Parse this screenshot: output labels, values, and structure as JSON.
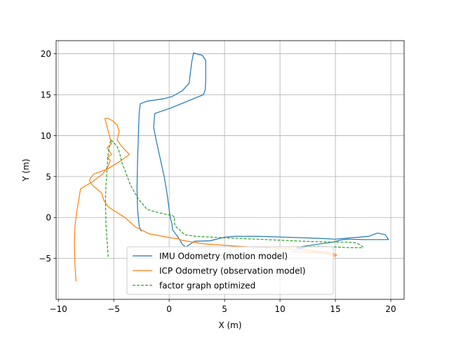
{
  "chart_data": {
    "type": "line",
    "title": "",
    "xlabel": "X (m)",
    "ylabel": "Y (m)",
    "xlim": [
      -10.2,
      21.2
    ],
    "ylim": [
      -10,
      21.6
    ],
    "xticks": [
      -10,
      -5,
      0,
      5,
      10,
      15,
      20
    ],
    "xtick_labels": [
      "−10",
      "−5",
      "0",
      "5",
      "10",
      "15",
      "20"
    ],
    "yticks": [
      -5,
      0,
      5,
      10,
      15,
      20
    ],
    "ytick_labels": [
      "−5",
      "0",
      "5",
      "10",
      "15",
      "20"
    ],
    "grid": true,
    "legend_position": "lower center",
    "series": [
      {
        "name": "IMU Odometry (motion model)",
        "color": "#1f77b4",
        "style": "solid",
        "x": [
          -2.5,
          -2.7,
          -2.85,
          -2.9,
          -2.85,
          -2.8,
          -2.75,
          -2.7,
          -2.6,
          -2.0,
          -0.5,
          0.3,
          1.2,
          1.8,
          1.85,
          1.9,
          2.05,
          2.2,
          3.0,
          3.3,
          3.3,
          3.25,
          3.1,
          2.0,
          0.2,
          -1.3,
          -1.4,
          -1.1,
          -0.45,
          -0.2,
          -0.1,
          0.0,
          0.1,
          0.25,
          0.3,
          0.8,
          1.2,
          1.5,
          2.3,
          3.7,
          5.0,
          6.0,
          8.0,
          10.5,
          13.5,
          15.0,
          18.0,
          18.8,
          19.5,
          19.8,
          19.2,
          17.5,
          16.0,
          15.5,
          14.8,
          13.5,
          12.0,
          11.5,
          12.3,
          12.1,
          11.6
        ],
        "y": [
          -1.7,
          -1.1,
          1.0,
          3.4,
          7.0,
          9.0,
          11.3,
          12.9,
          13.9,
          14.2,
          14.5,
          14.8,
          15.5,
          16.4,
          16.9,
          17.5,
          19.1,
          20.1,
          19.8,
          19.2,
          16.8,
          15.6,
          15.0,
          14.4,
          13.4,
          12.7,
          11.0,
          9.0,
          5.0,
          3.0,
          2.0,
          1.0,
          0.0,
          -0.8,
          -1.5,
          -2.4,
          -3.3,
          -3.6,
          -2.9,
          -2.85,
          -2.4,
          -2.3,
          -2.3,
          -2.4,
          -2.55,
          -2.65,
          -2.3,
          -1.9,
          -2.1,
          -2.7,
          -2.7,
          -2.7,
          -2.65,
          -2.75,
          -3.0,
          -3.25,
          -3.55,
          -3.7,
          -3.6,
          -3.75,
          -3.8
        ]
      },
      {
        "name": "ICP Odometry (observation model)",
        "color": "#ff7f0e",
        "style": "solid",
        "x": [
          -8.4,
          -8.5,
          -8.55,
          -8.5,
          -8.3,
          -8.0,
          -7.0,
          -6.0,
          -5.5,
          -5.3,
          -5.6,
          -5.2,
          -5.6,
          -5.2,
          -5.8,
          -5.5,
          -5.1,
          -4.7,
          -4.5,
          -4.7,
          -4.3,
          -3.6,
          -4.5,
          -5.6,
          -6.8,
          -7.1,
          -7.2,
          -6.9,
          -6.1,
          -5.9,
          -5.5,
          -4.0,
          -3.0,
          -1.8,
          -1.0,
          0.2,
          0.8,
          1.2,
          3.0,
          6.0,
          9.0,
          11.5,
          12.5,
          14.5,
          15.1,
          15.0,
          14.6,
          13.5,
          11.0,
          12.0
        ],
        "y": [
          -7.8,
          -6.0,
          -3.0,
          -1.0,
          1.0,
          3.5,
          4.3,
          5.3,
          6.3,
          7.0,
          7.3,
          7.7,
          8.5,
          9.0,
          12.1,
          12.1,
          11.8,
          11.3,
          10.5,
          9.5,
          8.7,
          7.7,
          6.8,
          5.9,
          5.3,
          4.8,
          4.5,
          3.9,
          3.0,
          2.1,
          1.3,
          0.0,
          -1.2,
          -2.0,
          -2.2,
          -2.5,
          -2.6,
          -2.8,
          -3.2,
          -3.5,
          -3.7,
          -3.9,
          -4.0,
          -4.3,
          -4.55,
          -4.75,
          -4.5,
          -4.3,
          -4.15,
          -4.2
        ]
      },
      {
        "name": "factor graph optimized",
        "color": "#2ca02c",
        "style": "dashed",
        "x": [
          -5.5,
          -5.6,
          -5.7,
          -5.75,
          -5.7,
          -5.6,
          -5.5,
          -5.35,
          -5.25,
          -4.7,
          -4.5,
          -4.4,
          -4.3,
          -4.0,
          -3.5,
          -2.8,
          -2.0,
          -1.0,
          -0.2,
          0.3,
          0.5,
          0.45,
          0.6,
          1.0,
          1.4,
          2.4,
          4.5,
          7.0,
          9.5,
          12.0,
          14.5,
          16.0,
          16.8,
          17.2,
          17.5,
          17.4,
          16.5,
          15.0,
          13.0,
          10.5
        ],
        "y": [
          -4.8,
          -3.0,
          -1.0,
          2.0,
          4.0,
          6.0,
          7.7,
          9.0,
          9.5,
          8.7,
          8.0,
          7.5,
          6.8,
          5.8,
          4.0,
          2.3,
          1.0,
          0.6,
          0.35,
          0.25,
          0.0,
          -0.6,
          -1.1,
          -1.6,
          -2.1,
          -2.3,
          -2.45,
          -2.6,
          -2.75,
          -2.9,
          -3.0,
          -3.0,
          -3.1,
          -3.3,
          -3.6,
          -3.7,
          -3.7,
          -3.6,
          -3.55,
          -3.6
        ]
      }
    ],
    "segment_note": ""
  }
}
